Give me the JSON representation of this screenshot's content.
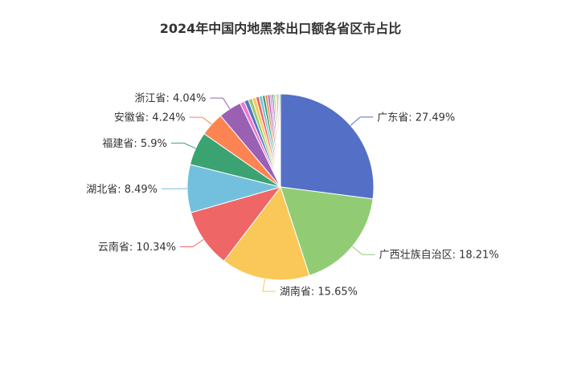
{
  "chart_data": {
    "type": "pie",
    "title": "2024年中国内地黑茶出口额各省区市占比",
    "start_angle_deg": 0,
    "direction": "clockwise",
    "slices": [
      {
        "name": "广东省",
        "value": 27.49,
        "display": "广东省: 27.49%",
        "color": "#5470c6",
        "label_side": "right"
      },
      {
        "name": "广西壮族自治区",
        "value": 18.21,
        "display": "广西壮族自治区: 18.21%",
        "color": "#91cc75",
        "label_side": "right"
      },
      {
        "name": "湖南省",
        "value": 15.65,
        "display": "湖南省: 15.65%",
        "color": "#fac858",
        "label_side": "right"
      },
      {
        "name": "云南省",
        "value": 10.34,
        "display": "云南省: 10.34%",
        "color": "#ee6666",
        "label_side": "left"
      },
      {
        "name": "湖北省",
        "value": 8.49,
        "display": "湖北省: 8.49%",
        "color": "#73c0de",
        "label_side": "left"
      },
      {
        "name": "福建省",
        "value": 5.9,
        "display": "福建省: 5.9%",
        "color": "#3ba272",
        "label_side": "left"
      },
      {
        "name": "安徽省",
        "value": 4.24,
        "display": "安徽省: 4.24%",
        "color": "#fc8452",
        "label_side": "left"
      },
      {
        "name": "浙江省",
        "value": 4.04,
        "display": "浙江省: 4.04%",
        "color": "#9a60b4",
        "label_side": "left"
      },
      {
        "name": "",
        "value": 0.8,
        "display": "",
        "color": "#ea7ccc"
      },
      {
        "name": "",
        "value": 0.75,
        "display": "",
        "color": "#5470c6"
      },
      {
        "name": "",
        "value": 0.7,
        "display": "",
        "color": "#91cc75"
      },
      {
        "name": "",
        "value": 0.65,
        "display": "",
        "color": "#fac858"
      },
      {
        "name": "",
        "value": 0.6,
        "display": "",
        "color": "#ee6666"
      },
      {
        "name": "",
        "value": 0.55,
        "display": "",
        "color": "#73c0de"
      },
      {
        "name": "",
        "value": 0.5,
        "display": "",
        "color": "#3ba272"
      },
      {
        "name": "",
        "value": 0.45,
        "display": "",
        "color": "#fc8452"
      },
      {
        "name": "",
        "value": 0.4,
        "display": "",
        "color": "#9a60b4"
      },
      {
        "name": "",
        "value": 0.35,
        "display": "",
        "color": "#ea7ccc"
      },
      {
        "name": "",
        "value": 0.3,
        "display": "",
        "color": "#5470c6"
      },
      {
        "name": "",
        "value": 0.28,
        "display": "",
        "color": "#91cc75"
      },
      {
        "name": "",
        "value": 0.26,
        "display": "",
        "color": "#fac858"
      },
      {
        "name": "",
        "value": 0.25,
        "display": "",
        "color": "#ee6666"
      },
      {
        "name": "",
        "value": 0.22,
        "display": "",
        "color": "#73c0de"
      },
      {
        "name": "",
        "value": 0.2,
        "display": "",
        "color": "#3ba272"
      }
    ]
  }
}
